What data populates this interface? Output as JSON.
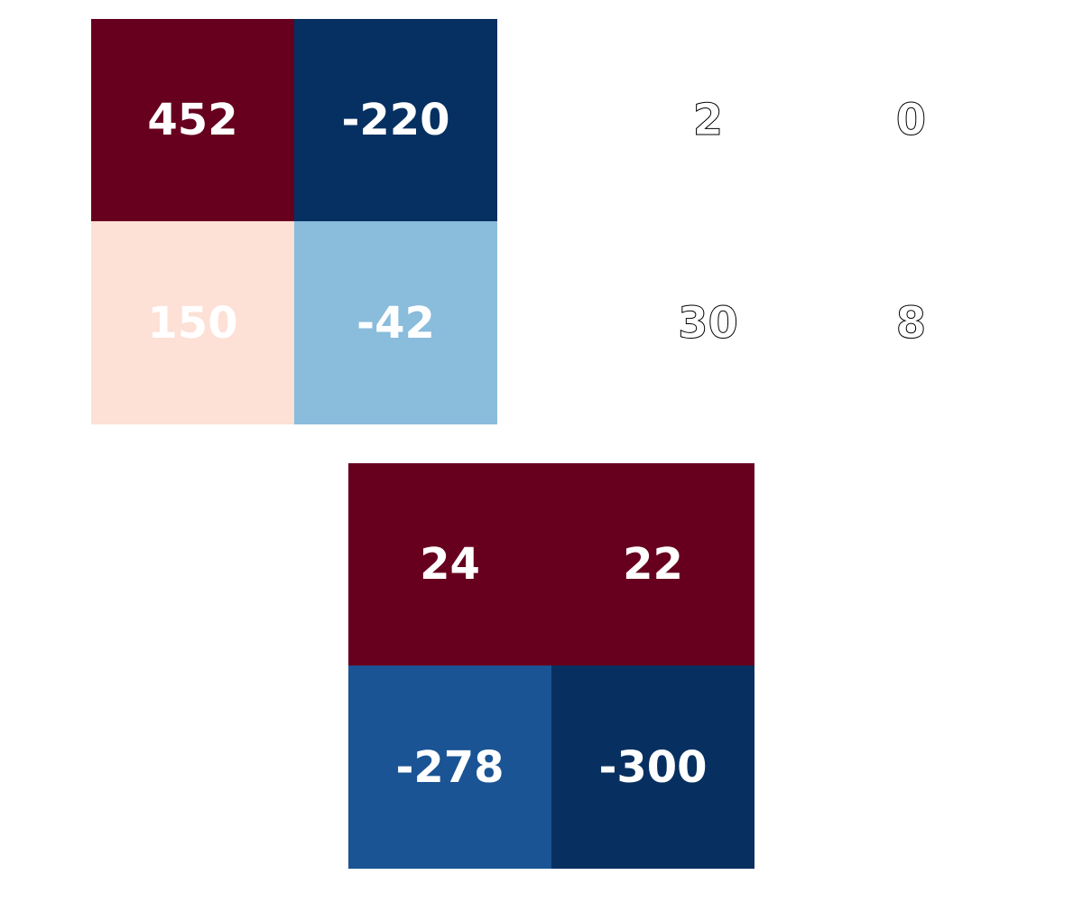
{
  "chart_data": [
    {
      "type": "heatmap",
      "values": [
        [
          452,
          -220
        ],
        [
          150,
          -42
        ]
      ],
      "cell_colors": [
        [
          "#67001f",
          "#053061"
        ],
        [
          "#fde0d6",
          "#8abcdb"
        ]
      ],
      "annotation_color": "#ffffff"
    },
    {
      "type": "heatmap",
      "values": [
        [
          2,
          0
        ],
        [
          30,
          8
        ]
      ],
      "cell_colors": [
        [
          "#ffffff",
          "#ffffff"
        ],
        [
          "#ffffff",
          "#ffffff"
        ]
      ],
      "annotation_color": "#ffffff",
      "annotation_outline": "#000000"
    },
    {
      "type": "heatmap",
      "values": [
        [
          24,
          22
        ],
        [
          -278,
          -300
        ]
      ],
      "cell_colors": [
        [
          "#67001f",
          "#67001f"
        ],
        [
          "#1a5494",
          "#073061"
        ]
      ],
      "annotation_color": "#ffffff"
    }
  ]
}
